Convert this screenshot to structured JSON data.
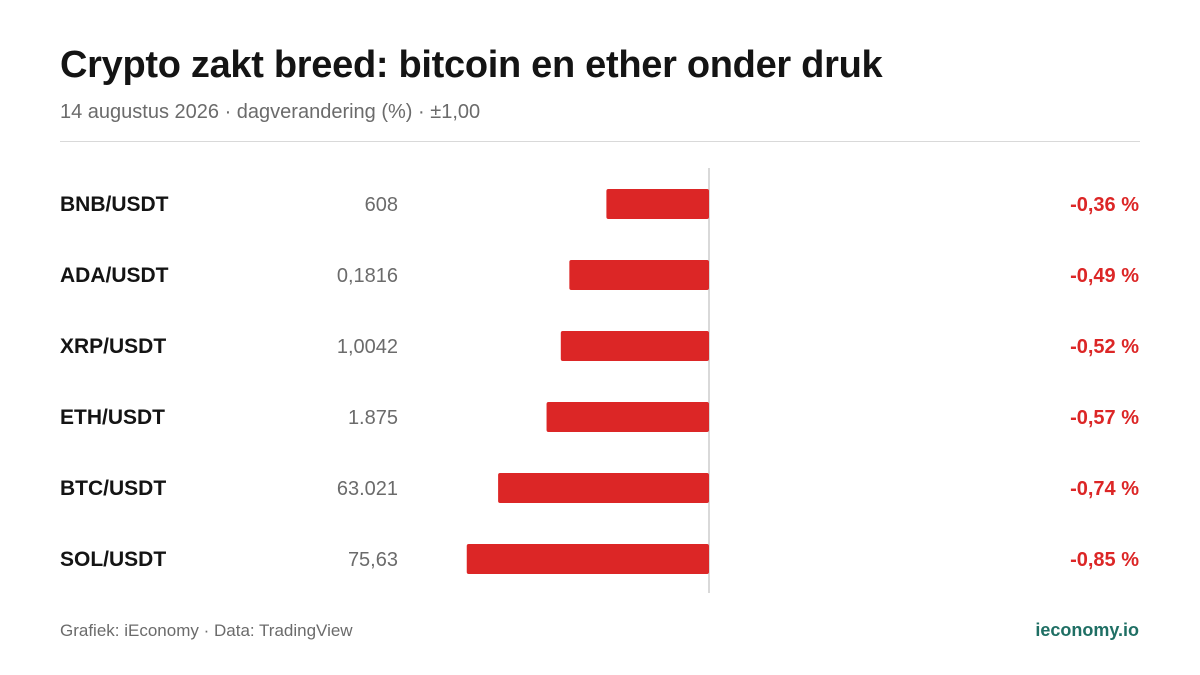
{
  "title": "Crypto zakt breed: bitcoin en ether onder druk",
  "subtitle": "14 augustus 2026 · dagverandering (%) · ±1,00",
  "footer": {
    "source": "Grafiek: iEconomy · Data: TradingView",
    "brand": "ieconomy.io"
  },
  "colors": {
    "negative": "#dc2626",
    "label": "#141414",
    "price": "#6b6b6b",
    "axis": "#d9d9d9",
    "brand": "#1f6f64"
  },
  "chart_data": {
    "type": "bar",
    "orientation": "horizontal",
    "xlim": [
      -1,
      1
    ],
    "categories": [
      "BNB/USDT",
      "ADA/USDT",
      "XRP/USDT",
      "ETH/USDT",
      "BTC/USDT",
      "SOL/USDT"
    ],
    "prices": [
      "608",
      "0,1816",
      "1,0042",
      "1.875",
      "63.021",
      "75,63"
    ],
    "values": [
      -0.36,
      -0.49,
      -0.52,
      -0.57,
      -0.74,
      -0.85
    ],
    "value_labels": [
      "-0,36 %",
      "-0,49 %",
      "-0,52 %",
      "-0,57 %",
      "-0,74 %",
      "-0,85 %"
    ]
  }
}
